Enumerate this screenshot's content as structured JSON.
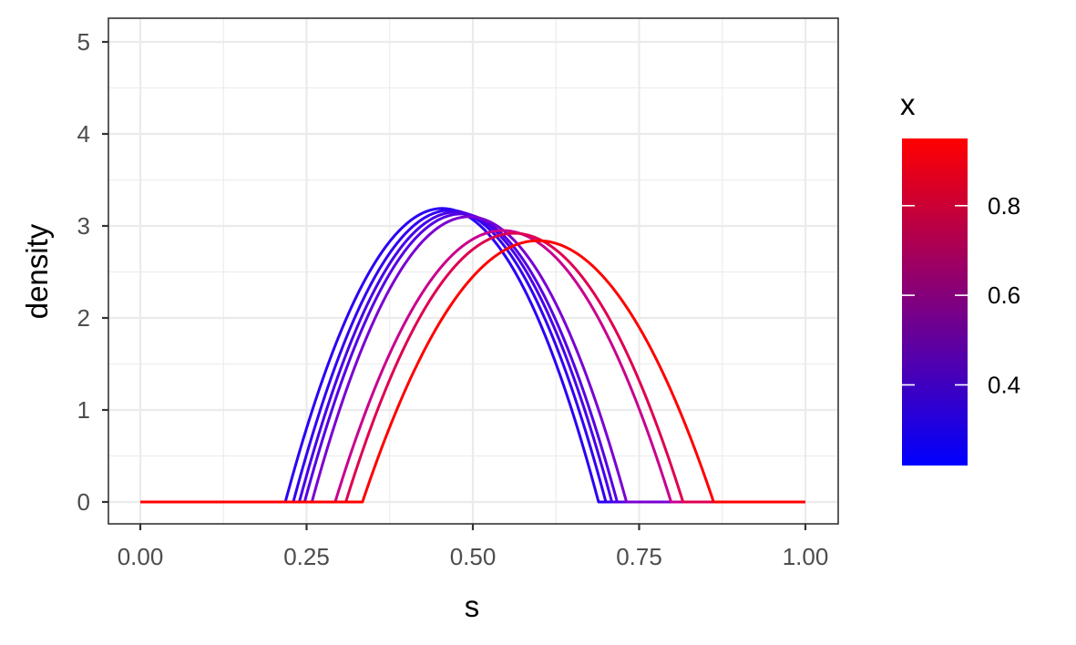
{
  "chart_data": {
    "type": "line",
    "title": "",
    "xlabel": "s",
    "ylabel": "density",
    "xlim": [
      0,
      1
    ],
    "ylim": [
      0,
      5
    ],
    "x_ticks": [
      "0.00",
      "0.25",
      "0.50",
      "0.75",
      "1.00"
    ],
    "y_ticks": [
      "0",
      "1",
      "2",
      "3",
      "4",
      "5"
    ],
    "grid": true,
    "legend": {
      "title": "x",
      "type": "colorbar",
      "position": "right",
      "low_color": "#0000ff",
      "high_color": "#ff0000",
      "range": [
        0.22,
        0.95
      ],
      "ticks": [
        "0.4",
        "0.6",
        "0.8"
      ]
    },
    "series": [
      {
        "x_value": 0.22,
        "color": "#2a00f5",
        "shape": {
          "start": 0.218,
          "end": 0.689,
          "peak_s": 0.454,
          "peak_density": 3.19
        }
      },
      {
        "x_value": 0.25,
        "color": "#3200f2",
        "shape": {
          "start": 0.23,
          "end": 0.7,
          "peak_s": 0.465,
          "peak_density": 3.17
        }
      },
      {
        "x_value": 0.28,
        "color": "#4700e8",
        "shape": {
          "start": 0.239,
          "end": 0.709,
          "peak_s": 0.474,
          "peak_density": 3.15
        }
      },
      {
        "x_value": 0.3,
        "color": "#5500e4",
        "shape": {
          "start": 0.247,
          "end": 0.717,
          "peak_s": 0.482,
          "peak_density": 3.13
        }
      },
      {
        "x_value": 0.35,
        "color": "#7a00d2",
        "shape": {
          "start": 0.258,
          "end": 0.731,
          "peak_s": 0.494,
          "peak_density": 3.1
        }
      },
      {
        "x_value": 0.7,
        "color": "#c8008e",
        "shape": {
          "start": 0.293,
          "end": 0.798,
          "peak_s": 0.545,
          "peak_density": 2.95
        }
      },
      {
        "x_value": 0.78,
        "color": "#df0050",
        "shape": {
          "start": 0.309,
          "end": 0.816,
          "peak_s": 0.562,
          "peak_density": 2.92
        }
      },
      {
        "x_value": 0.95,
        "color": "#ff0000",
        "shape": {
          "start": 0.334,
          "end": 0.862,
          "peak_s": 0.598,
          "peak_density": 2.84
        }
      }
    ]
  }
}
